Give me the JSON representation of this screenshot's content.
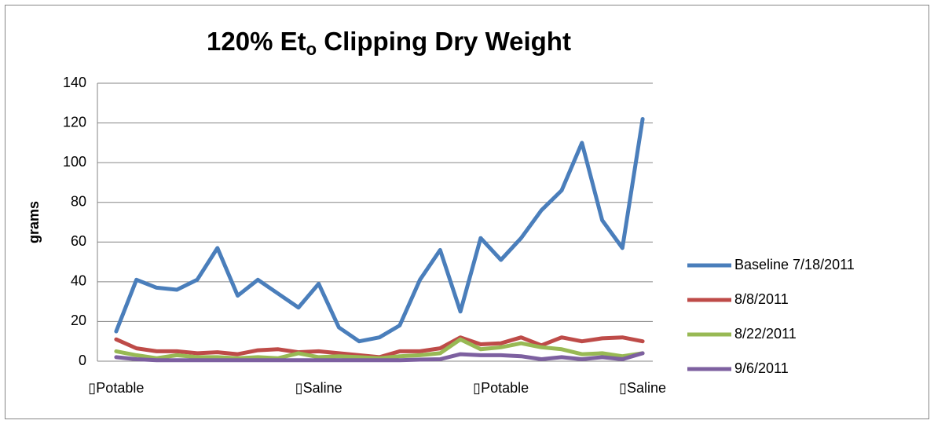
{
  "chart_data": {
    "type": "line",
    "title": [
      "120% Et",
      "o",
      " Clipping Dry Weight"
    ],
    "y_label": "grams",
    "categories": [
      "▯Potable",
      null,
      null,
      null,
      null,
      null,
      null,
      null,
      null,
      null,
      "▯Saline",
      null,
      null,
      null,
      null,
      null,
      null,
      null,
      null,
      "▯Potable",
      null,
      null,
      null,
      null,
      null,
      null,
      "▯Saline"
    ],
    "series": [
      {
        "name": "Baseline 7/18/2011",
        "color": "#4a7ebb",
        "values": [
          15,
          41,
          37,
          36,
          41,
          57,
          33,
          41,
          34,
          27,
          39,
          17,
          10,
          12,
          18,
          41,
          56,
          25,
          62,
          51,
          62,
          76,
          86,
          110,
          71,
          57,
          122
        ]
      },
      {
        "name": "8/8/2011",
        "color": "#be4b48",
        "values": [
          11,
          6.5,
          5,
          5,
          4,
          4.5,
          3.5,
          5.5,
          6,
          4.5,
          5,
          4,
          3,
          2,
          5,
          5,
          6.5,
          12,
          8.5,
          9,
          12,
          8,
          12,
          10,
          11.5,
          12,
          10
        ]
      },
      {
        "name": "8/22/2011",
        "color": "#98b954",
        "values": [
          5,
          3,
          1.5,
          3,
          2,
          2,
          1.5,
          2,
          1.5,
          4,
          2,
          2.5,
          2,
          1.5,
          2.5,
          3,
          4,
          11,
          6,
          7,
          9,
          7,
          6,
          3.5,
          4,
          2.5,
          4
        ]
      },
      {
        "name": "9/6/2011",
        "color": "#7d60a0",
        "values": [
          2,
          1,
          0.5,
          0.5,
          0.5,
          0.5,
          0.5,
          0.5,
          0.5,
          0.5,
          0.5,
          0.5,
          0.5,
          0.5,
          0.5,
          0.8,
          1,
          3.5,
          3,
          3,
          2.5,
          1,
          2,
          1,
          2,
          1,
          4
        ]
      }
    ],
    "ylim": [
      0,
      140
    ],
    "yticks": [
      0,
      20,
      40,
      60,
      80,
      100,
      120,
      140
    ],
    "grid": true,
    "legend": "right"
  }
}
